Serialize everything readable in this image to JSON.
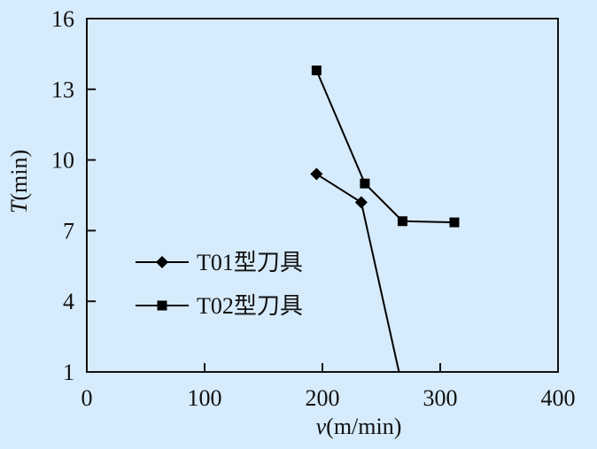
{
  "chart_data": {
    "type": "line",
    "xlabel_var": "v",
    "xlabel_unit": "(m/min)",
    "ylabel_var": "T",
    "ylabel_unit": "(min)",
    "xlim": [
      0,
      400
    ],
    "ylim": [
      1,
      16
    ],
    "xticks": [
      0,
      100,
      200,
      300,
      400
    ],
    "yticks": [
      1,
      4,
      7,
      10,
      13,
      16
    ],
    "grid": false,
    "legend_position": "left-middle",
    "series": [
      {
        "name": "T01型刀具",
        "marker": "diamond",
        "color": "#000000",
        "x": [
          195,
          233,
          265
        ],
        "y": [
          9.4,
          8.2,
          1
        ]
      },
      {
        "name": "T02型刀具",
        "marker": "square",
        "color": "#000000",
        "x": [
          195,
          236,
          268,
          312
        ],
        "y": [
          13.8,
          9.0,
          7.4,
          7.35
        ]
      }
    ]
  }
}
